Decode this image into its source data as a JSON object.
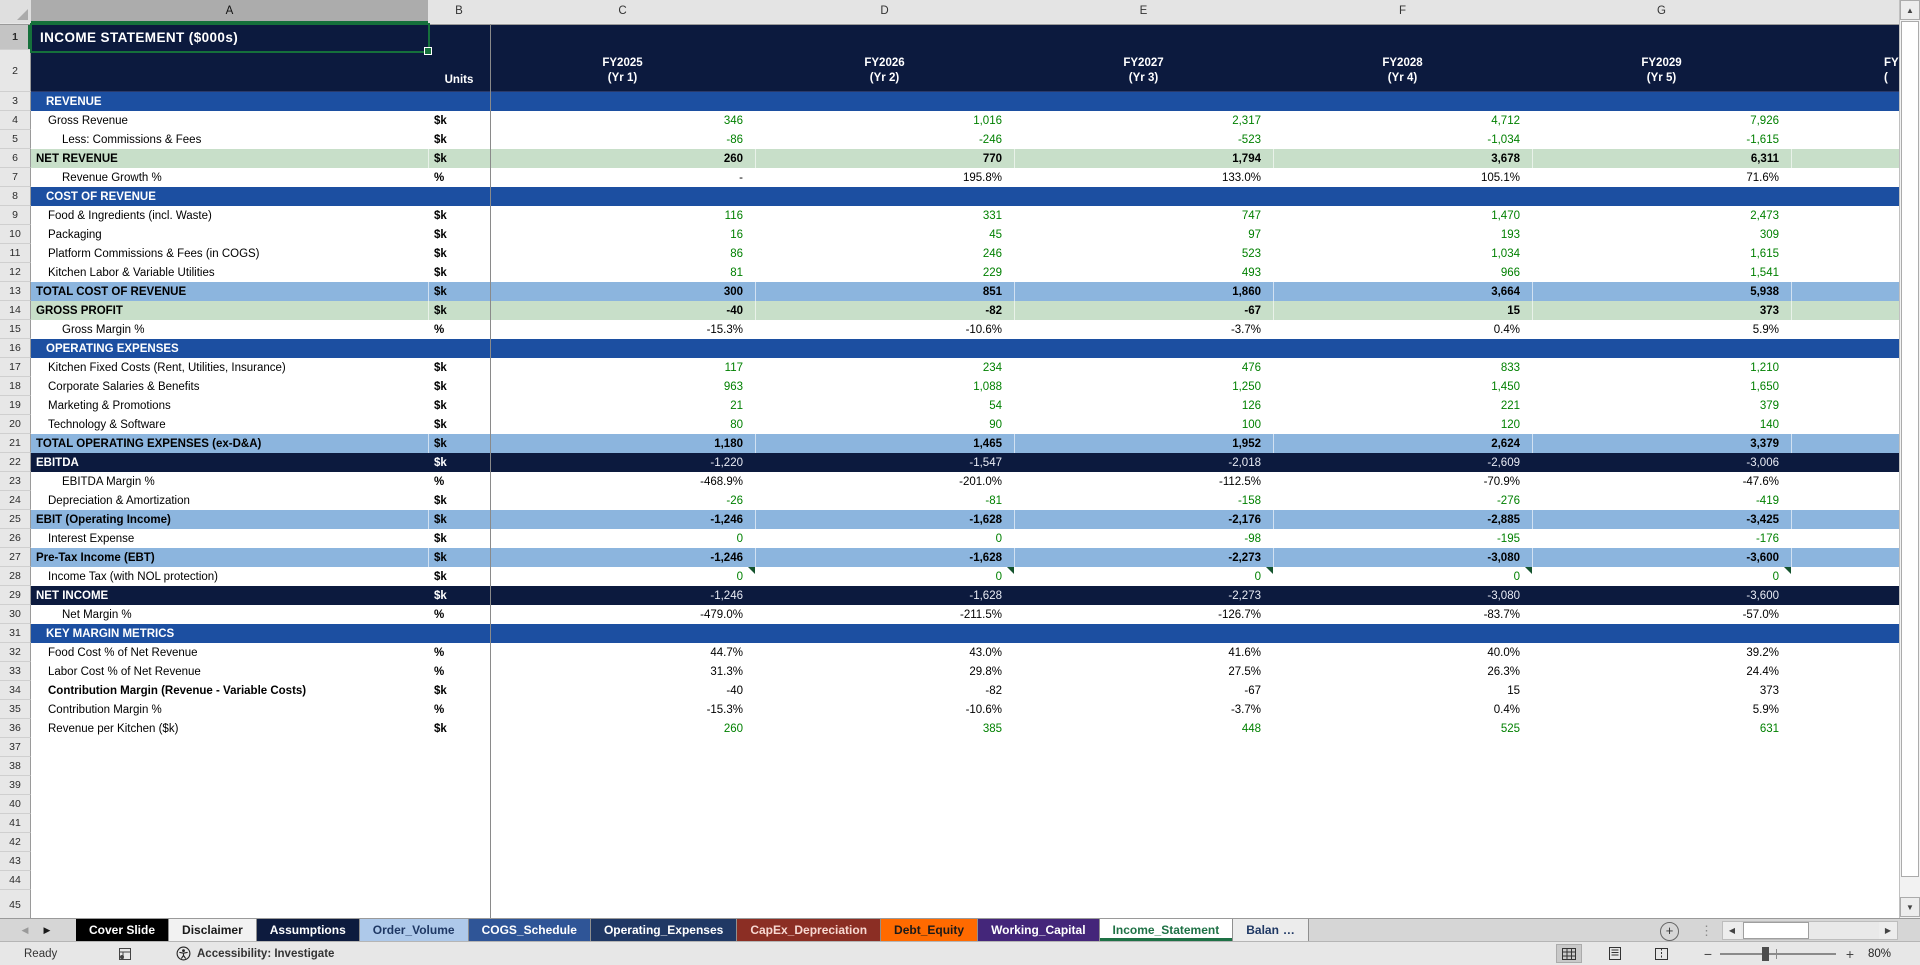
{
  "title_cell": "INCOME STATEMENT ($000s)",
  "selection": {
    "cell": "A1",
    "column": "A",
    "row": "1"
  },
  "grid": {
    "column_letters": [
      "A",
      "B",
      "C",
      "D",
      "E",
      "F",
      "G"
    ],
    "first_row": 1,
    "last_row": 45
  },
  "header": {
    "units_label": "Units",
    "periods": [
      {
        "year": "FY2025",
        "yr": "(Yr 1)"
      },
      {
        "year": "FY2026",
        "yr": "(Yr 2)"
      },
      {
        "year": "FY2027",
        "yr": "(Yr 3)"
      },
      {
        "year": "FY2028",
        "yr": "(Yr 4)"
      },
      {
        "year": "FY2029",
        "yr": "(Yr 5)"
      }
    ],
    "partial_period": {
      "year": "FY",
      "yr": "("
    }
  },
  "rows": [
    {
      "num": 3,
      "label": "REVENUE",
      "unit": "",
      "indent": 1,
      "style": "section",
      "vclass": "black",
      "values": [
        "",
        "",
        "",
        "",
        ""
      ]
    },
    {
      "num": 4,
      "label": "Gross Revenue",
      "unit": "$k",
      "indent": 1,
      "style": "normal",
      "vclass": "green",
      "values": [
        "346",
        "1,016",
        "2,317",
        "4,712",
        "7,926"
      ]
    },
    {
      "num": 5,
      "label": "Less: Commissions & Fees",
      "unit": "$k",
      "indent": 2,
      "style": "normal",
      "vclass": "green",
      "values": [
        "-86",
        "-246",
        "-523",
        "-1,034",
        "-1,615"
      ]
    },
    {
      "num": 6,
      "label": "NET REVENUE",
      "unit": "$k",
      "indent": 0,
      "style": "green",
      "vclass": "bold",
      "values": [
        "260",
        "770",
        "1,794",
        "3,678",
        "6,311"
      ]
    },
    {
      "num": 7,
      "label": "Revenue Growth %",
      "unit": "%",
      "indent": 2,
      "style": "normal",
      "vclass": "black",
      "values": [
        "-",
        "195.8%",
        "133.0%",
        "105.1%",
        "71.6%"
      ]
    },
    {
      "num": 8,
      "label": "COST OF REVENUE",
      "unit": "",
      "indent": 1,
      "style": "section",
      "vclass": "black",
      "values": [
        "",
        "",
        "",
        "",
        ""
      ]
    },
    {
      "num": 9,
      "label": "Food & Ingredients (incl. Waste)",
      "unit": "$k",
      "indent": 1,
      "style": "normal",
      "vclass": "green",
      "values": [
        "116",
        "331",
        "747",
        "1,470",
        "2,473"
      ]
    },
    {
      "num": 10,
      "label": "Packaging",
      "unit": "$k",
      "indent": 1,
      "style": "normal",
      "vclass": "green",
      "values": [
        "16",
        "45",
        "97",
        "193",
        "309"
      ]
    },
    {
      "num": 11,
      "label": "Platform Commissions & Fees (in COGS)",
      "unit": "$k",
      "indent": 1,
      "style": "normal",
      "vclass": "green",
      "values": [
        "86",
        "246",
        "523",
        "1,034",
        "1,615"
      ]
    },
    {
      "num": 12,
      "label": "Kitchen Labor & Variable Utilities",
      "unit": "$k",
      "indent": 1,
      "style": "normal",
      "vclass": "green",
      "values": [
        "81",
        "229",
        "493",
        "966",
        "1,541"
      ]
    },
    {
      "num": 13,
      "label": "TOTAL COST OF REVENUE",
      "unit": "$k",
      "indent": 0,
      "style": "blue",
      "vclass": "bold",
      "values": [
        "300",
        "851",
        "1,860",
        "3,664",
        "5,938"
      ]
    },
    {
      "num": 14,
      "label": "GROSS PROFIT",
      "unit": "$k",
      "indent": 0,
      "style": "green",
      "vclass": "bold",
      "values": [
        "-40",
        "-82",
        "-67",
        "15",
        "373"
      ]
    },
    {
      "num": 15,
      "label": "Gross Margin %",
      "unit": "%",
      "indent": 2,
      "style": "normal",
      "vclass": "black",
      "values": [
        "-15.3%",
        "-10.6%",
        "-3.7%",
        "0.4%",
        "5.9%"
      ]
    },
    {
      "num": 16,
      "label": "OPERATING EXPENSES",
      "unit": "",
      "indent": 1,
      "style": "section",
      "vclass": "black",
      "values": [
        "",
        "",
        "",
        "",
        ""
      ]
    },
    {
      "num": 17,
      "label": "Kitchen Fixed Costs (Rent, Utilities, Insurance)",
      "unit": "$k",
      "indent": 1,
      "style": "normal",
      "vclass": "green",
      "values": [
        "117",
        "234",
        "476",
        "833",
        "1,210"
      ]
    },
    {
      "num": 18,
      "label": "Corporate Salaries & Benefits",
      "unit": "$k",
      "indent": 1,
      "style": "normal",
      "vclass": "green",
      "values": [
        "963",
        "1,088",
        "1,250",
        "1,450",
        "1,650"
      ]
    },
    {
      "num": 19,
      "label": "Marketing & Promotions",
      "unit": "$k",
      "indent": 1,
      "style": "normal",
      "vclass": "green",
      "values": [
        "21",
        "54",
        "126",
        "221",
        "379"
      ]
    },
    {
      "num": 20,
      "label": "Technology & Software",
      "unit": "$k",
      "indent": 1,
      "style": "normal",
      "vclass": "green",
      "values": [
        "80",
        "90",
        "100",
        "120",
        "140"
      ]
    },
    {
      "num": 21,
      "label": "TOTAL OPERATING EXPENSES (ex-D&A)",
      "unit": "$k",
      "indent": 0,
      "style": "blue",
      "vclass": "bold",
      "values": [
        "1,180",
        "1,465",
        "1,952",
        "2,624",
        "3,379"
      ]
    },
    {
      "num": 22,
      "label": "EBITDA",
      "unit": "$k",
      "indent": 0,
      "style": "navy",
      "vclass": "white",
      "values": [
        "-1,220",
        "-1,547",
        "-2,018",
        "-2,609",
        "-3,006"
      ]
    },
    {
      "num": 23,
      "label": "EBITDA Margin %",
      "unit": "%",
      "indent": 2,
      "style": "normal",
      "vclass": "black",
      "values": [
        "-468.9%",
        "-201.0%",
        "-112.5%",
        "-70.9%",
        "-47.6%"
      ]
    },
    {
      "num": 24,
      "label": "Depreciation & Amortization",
      "unit": "$k",
      "indent": 1,
      "style": "normal",
      "vclass": "green",
      "values": [
        "-26",
        "-81",
        "-158",
        "-276",
        "-419"
      ]
    },
    {
      "num": 25,
      "label": "EBIT (Operating Income)",
      "unit": "$k",
      "indent": 0,
      "style": "blue",
      "vclass": "bold",
      "values": [
        "-1,246",
        "-1,628",
        "-2,176",
        "-2,885",
        "-3,425"
      ]
    },
    {
      "num": 26,
      "label": "Interest Expense",
      "unit": "$k",
      "indent": 1,
      "style": "normal",
      "vclass": "green",
      "values": [
        "0",
        "0",
        "-98",
        "-195",
        "-176"
      ]
    },
    {
      "num": 27,
      "label": "Pre-Tax Income (EBT)",
      "unit": "$k",
      "indent": 0,
      "style": "blue",
      "vclass": "bold",
      "values": [
        "-1,246",
        "-1,628",
        "-2,273",
        "-3,080",
        "-3,600"
      ]
    },
    {
      "num": 28,
      "label": "Income Tax (with NOL protection)",
      "unit": "$k",
      "indent": 1,
      "style": "normal",
      "vclass": "green",
      "flag": true,
      "values": [
        "0",
        "0",
        "0",
        "0",
        "0"
      ]
    },
    {
      "num": 29,
      "label": "NET INCOME",
      "unit": "$k",
      "indent": 0,
      "style": "navy",
      "vclass": "white",
      "values": [
        "-1,246",
        "-1,628",
        "-2,273",
        "-3,080",
        "-3,600"
      ]
    },
    {
      "num": 30,
      "label": "Net Margin %",
      "unit": "%",
      "indent": 2,
      "style": "normal",
      "vclass": "black",
      "values": [
        "-479.0%",
        "-211.5%",
        "-126.7%",
        "-83.7%",
        "-57.0%"
      ]
    },
    {
      "num": 31,
      "label": "KEY MARGIN METRICS",
      "unit": "",
      "indent": 1,
      "style": "section",
      "vclass": "black",
      "values": [
        "",
        "",
        "",
        "",
        ""
      ]
    },
    {
      "num": 32,
      "label": "Food Cost % of Net Revenue",
      "unit": "%",
      "indent": 1,
      "style": "normal",
      "vclass": "black",
      "values": [
        "44.7%",
        "43.0%",
        "41.6%",
        "40.0%",
        "39.2%"
      ]
    },
    {
      "num": 33,
      "label": "Labor Cost % of Net Revenue",
      "unit": "%",
      "indent": 1,
      "style": "normal",
      "vclass": "black",
      "values": [
        "31.3%",
        "29.8%",
        "27.5%",
        "26.3%",
        "24.4%"
      ]
    },
    {
      "num": 34,
      "label": "Contribution Margin (Revenue - Variable Costs)",
      "unit": "$k",
      "indent": 1,
      "style": "normal",
      "vclass": "black",
      "boldLabel": true,
      "values": [
        "-40",
        "-82",
        "-67",
        "15",
        "373"
      ]
    },
    {
      "num": 35,
      "label": "Contribution Margin %",
      "unit": "%",
      "indent": 1,
      "style": "normal",
      "vclass": "black",
      "values": [
        "-15.3%",
        "-10.6%",
        "-3.7%",
        "0.4%",
        "5.9%"
      ]
    },
    {
      "num": 36,
      "label": "Revenue per Kitchen ($k)",
      "unit": "$k",
      "indent": 1,
      "style": "normal",
      "vclass": "green",
      "values": [
        "260",
        "385",
        "448",
        "525",
        "631"
      ]
    }
  ],
  "sheet_tabs": [
    {
      "label": "Cover Slide",
      "bg": "#000000",
      "fg": "#FFFFFF"
    },
    {
      "label": "Disclaimer",
      "bg": "#F2F2F2",
      "fg": "#1a1a1a"
    },
    {
      "label": "Assumptions",
      "bg": "#0D1B3E",
      "fg": "#FFFFFF"
    },
    {
      "label": "Order_Volume",
      "bg": "#AEC9EA",
      "fg": "#1F3864"
    },
    {
      "label": "COGS_Schedule",
      "bg": "#2F5597",
      "fg": "#FFFFFF"
    },
    {
      "label": "Operating_Expenses",
      "bg": "#203864",
      "fg": "#FFFFFF"
    },
    {
      "label": "CapEx_Depreciation",
      "bg": "#8B2E24",
      "fg": "#F7D8D2"
    },
    {
      "label": "Debt_Equity",
      "bg": "#FF6A00",
      "fg": "#1A1A1A"
    },
    {
      "label": "Working_Capital",
      "bg": "#44267A",
      "fg": "#FFFFFF"
    },
    {
      "label": "Income_Statement",
      "bg": "#FFFFFF",
      "fg": "#1E7145",
      "active": true
    },
    {
      "label": "Balan",
      "bg": "#ECECEC",
      "fg": "#1F3864",
      "truncated": true
    }
  ],
  "status_bar": {
    "ready_label": "Ready",
    "accessibility_label": "Accessibility: Investigate",
    "zoom_label": "80%"
  },
  "icons": {
    "scroll_up": "▲",
    "scroll_down": "▼",
    "scroll_left": "◀",
    "scroll_right": "▶",
    "tab_prev": "◀",
    "tab_next": "▶",
    "new_sheet": "+",
    "options_dots": "⋮",
    "zoom_out": "−",
    "zoom_in": "+",
    "truncation_ellipsis": "…"
  },
  "colors": {
    "header_navy": "#0C1A3E",
    "section_blue": "#1C4FA1",
    "band_blue": "#8CB5DE",
    "band_green": "#C8DFC9",
    "value_green": "#008000",
    "active_tab_green": "#1E7145",
    "selection_green": "#15703B"
  }
}
